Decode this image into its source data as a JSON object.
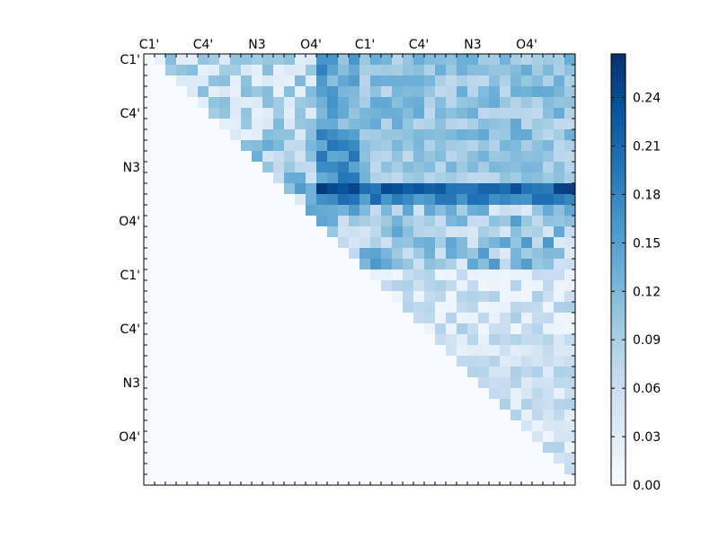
{
  "chart_data": {
    "type": "heatmap",
    "rows": 40,
    "cols": 40,
    "x_tick_labels": [
      "C1'",
      "C4'",
      "N3",
      "O4'",
      "C1'",
      "C4'",
      "N3",
      "O4'"
    ],
    "y_tick_labels": [
      "C1'",
      "C4'",
      "N3",
      "O4'",
      "C1'",
      "C4'",
      "N3",
      "O4'"
    ],
    "colorscale": [
      "#f7fbff",
      "#deebf7",
      "#c6dbef",
      "#9ecae1",
      "#6baed6",
      "#4292c6",
      "#2171b5",
      "#08519c",
      "#08306b"
    ],
    "vmin": 0.0,
    "vmax": 0.267,
    "colorbar_ticks": [
      "0.00",
      "0.03",
      "0.06",
      "0.09",
      "0.12",
      "0.15",
      "0.18",
      "0.21",
      "0.24"
    ],
    "grid": false
  }
}
